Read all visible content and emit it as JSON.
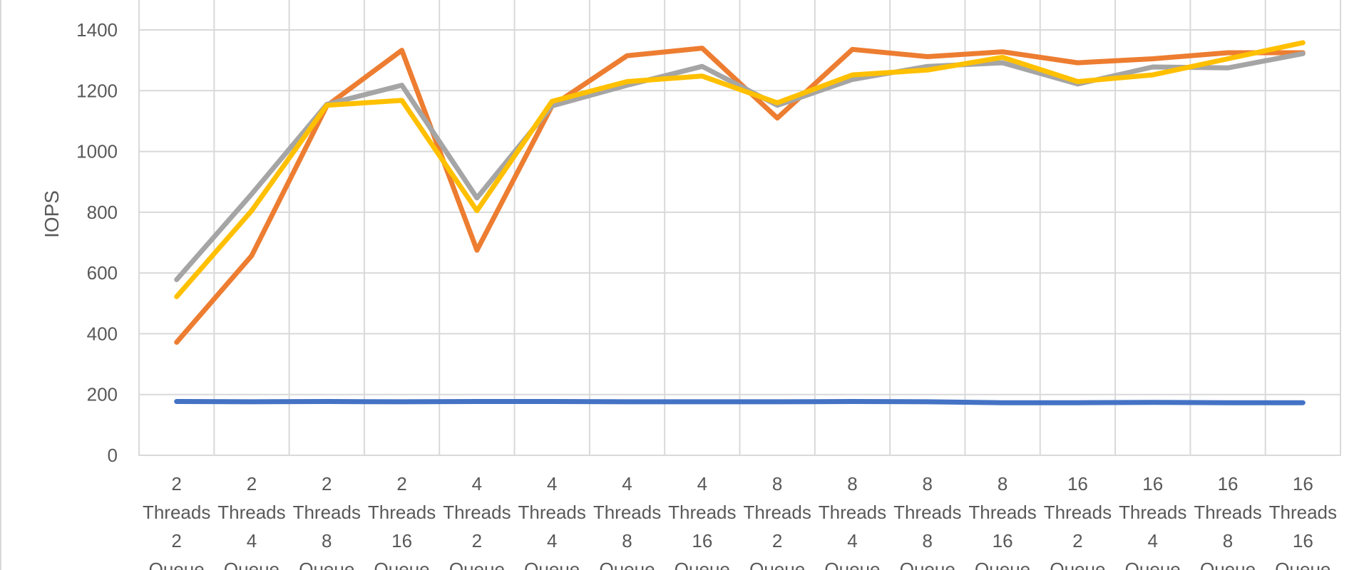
{
  "chart_data": {
    "type": "line",
    "title": "",
    "xlabel": "",
    "ylabel": "IOPS",
    "ylim": [
      0,
      1400
    ],
    "yticks": [
      0,
      200,
      400,
      600,
      800,
      1000,
      1200,
      1400
    ],
    "grid": true,
    "categories": [
      [
        "2",
        "Threads",
        "2",
        "Queue"
      ],
      [
        "2",
        "Threads",
        "4",
        "Queue"
      ],
      [
        "2",
        "Threads",
        "8",
        "Queue"
      ],
      [
        "2",
        "Threads",
        "16",
        "Queue"
      ],
      [
        "4",
        "Threads",
        "2",
        "Queue"
      ],
      [
        "4",
        "Threads",
        "4",
        "Queue"
      ],
      [
        "4",
        "Threads",
        "8",
        "Queue"
      ],
      [
        "4",
        "Threads",
        "16",
        "Queue"
      ],
      [
        "8",
        "Threads",
        "2",
        "Queue"
      ],
      [
        "8",
        "Threads",
        "4",
        "Queue"
      ],
      [
        "8",
        "Threads",
        "8",
        "Queue"
      ],
      [
        "8",
        "Threads",
        "16",
        "Queue"
      ],
      [
        "16",
        "Threads",
        "2",
        "Queue"
      ],
      [
        "16",
        "Threads",
        "4",
        "Queue"
      ],
      [
        "16",
        "Threads",
        "8",
        "Queue"
      ],
      [
        "16",
        "Threads",
        "16",
        "Queue"
      ]
    ],
    "series": [
      {
        "color": "#4472C4",
        "values": [
          177,
          176,
          177,
          176,
          177,
          177,
          176,
          176,
          176,
          177,
          176,
          173,
          173,
          174,
          173,
          173
        ]
      },
      {
        "color": "#ED7D31",
        "values": [
          372,
          657,
          1150,
          1333,
          675,
          1150,
          1315,
          1340,
          1110,
          1336,
          1312,
          1328,
          1292,
          1305,
          1325,
          1325
        ]
      },
      {
        "color": "#A5A5A5",
        "values": [
          578,
          860,
          1155,
          1218,
          847,
          1150,
          1218,
          1280,
          1152,
          1237,
          1280,
          1292,
          1222,
          1278,
          1275,
          1322
        ]
      },
      {
        "color": "#FFC000",
        "values": [
          522,
          805,
          1152,
          1168,
          805,
          1165,
          1230,
          1248,
          1160,
          1252,
          1268,
          1310,
          1230,
          1252,
          1305,
          1358
        ]
      }
    ]
  }
}
